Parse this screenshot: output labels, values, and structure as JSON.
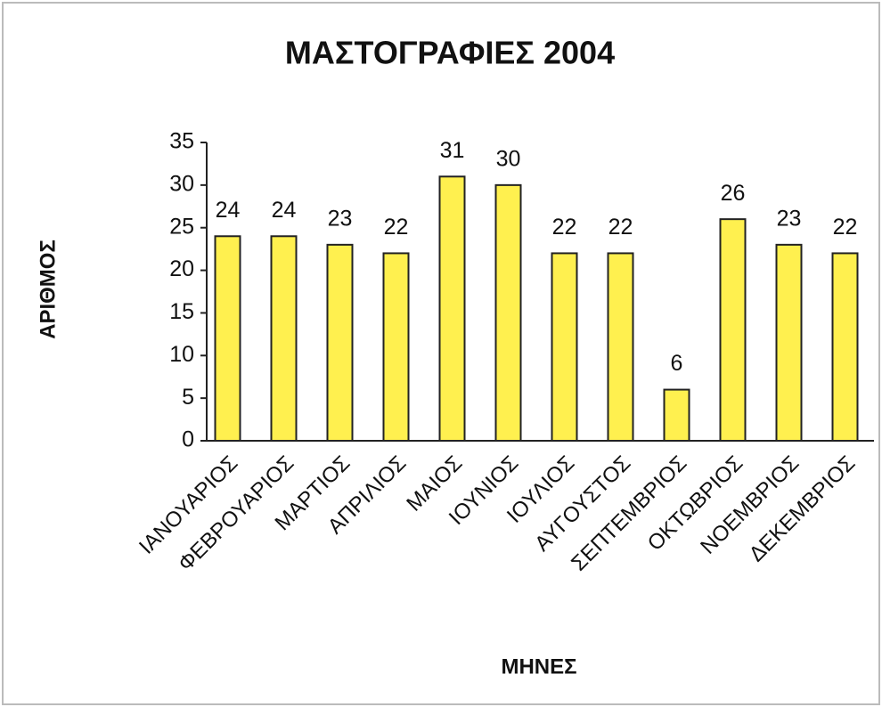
{
  "chart_data": {
    "type": "bar",
    "title": "ΜΑΣΤΟΓΡΑΦΙΕΣ 2004",
    "x_label": "ΜΗΝΕΣ",
    "y_label": "ΑΡΙΘΜΟΣ",
    "categories": [
      "ΙΑΝΟΥΑΡΙΟΣ",
      "ΦΕΒΡΟΥΑΡΙΟΣ",
      "ΜΑΡΤΙΟΣ",
      "ΑΠΡΙΛΙΟΣ",
      "ΜΑΙΟΣ",
      "ΙΟΥΝΙΟΣ",
      "ΙΟΥΛΙΟΣ",
      "ΑΥΓΟΥΣΤΟΣ",
      "ΣΕΠΤΕΜΒΡΙΟΣ",
      "ΟΚΤΩΒΡΙΟΣ",
      "ΝΟΕΜΒΡΙΟΣ",
      "ΔΕΚΕΜΒΡΙΟΣ"
    ],
    "values": [
      24,
      24,
      23,
      22,
      31,
      30,
      22,
      22,
      6,
      26,
      23,
      22
    ],
    "color": "#fff04f",
    "ylim": [
      0,
      35
    ],
    "yticks": [
      0,
      5,
      10,
      15,
      20,
      25,
      30,
      35
    ],
    "grid": false
  }
}
